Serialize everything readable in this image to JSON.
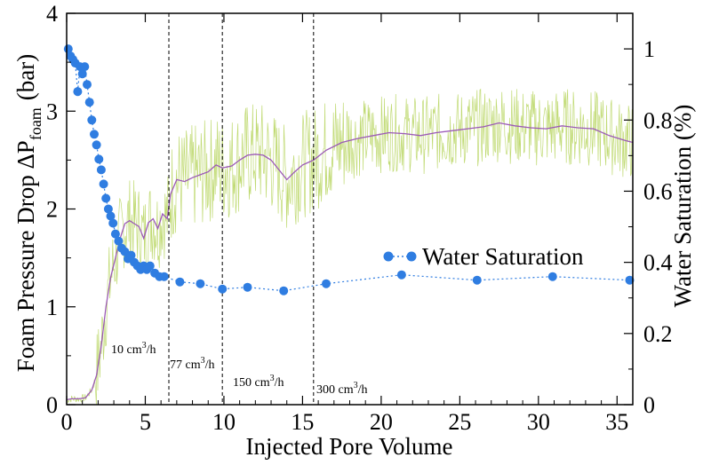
{
  "chart_data": {
    "type": "line",
    "xlabel": "Injected Pore Volume",
    "ylabel_left": "Foam Pressure Drop  ΔP",
    "ylabel_left_sub": "foam",
    "ylabel_left_unit": "(bar)",
    "ylabel_right": "Water Saturation (%)",
    "xlim": [
      0,
      36
    ],
    "ylim_left": [
      0,
      4
    ],
    "ylim_right": [
      0,
      1.1
    ],
    "xticks": [
      "0",
      "5",
      "10",
      "15",
      "20",
      "25",
      "30",
      "35"
    ],
    "yticks_left": [
      "0",
      "1",
      "2",
      "3",
      "4"
    ],
    "yticks_right": [
      "0",
      "0.2",
      "0.4",
      "0.6",
      "0.8",
      "1"
    ],
    "grid": false,
    "legend_position": "center-right",
    "flow_rate_changes": [
      {
        "x": 6.5,
        "label_base": "77 cm",
        "label_sup": "3",
        "label_tail": "/h"
      },
      {
        "x": 9.9,
        "label_base": "150 cm",
        "label_sup": "3",
        "label_tail": "/h"
      },
      {
        "x": 15.7,
        "label_base": "300 cm",
        "label_sup": "3",
        "label_tail": "/h"
      }
    ],
    "initial_rate_label": {
      "label_base": "10 cm",
      "label_sup": "3",
      "label_tail": "/h"
    },
    "series": [
      {
        "name": "Water Saturation",
        "axis": "right",
        "style": "dotted-line-with-markers",
        "color": "#2f7de1",
        "x": [
          0.1,
          0.25,
          0.4,
          0.55,
          0.7,
          0.85,
          1.0,
          1.15,
          1.3,
          1.45,
          1.6,
          1.75,
          1.9,
          2.05,
          2.2,
          2.35,
          2.5,
          2.65,
          2.8,
          2.95,
          3.1,
          3.3,
          3.5,
          3.7,
          3.9,
          4.1,
          4.3,
          4.5,
          4.7,
          4.9,
          5.1,
          5.3,
          5.6,
          5.9,
          6.2,
          7.2,
          8.5,
          9.9,
          11.5,
          13.8,
          16.5,
          21.3,
          26.1,
          30.9,
          35.8
        ],
        "values": [
          1.0,
          0.98,
          0.97,
          0.96,
          0.88,
          0.95,
          0.93,
          0.95,
          0.9,
          0.85,
          0.8,
          0.76,
          0.73,
          0.69,
          0.66,
          0.62,
          0.58,
          0.55,
          0.53,
          0.51,
          0.48,
          0.46,
          0.44,
          0.43,
          0.41,
          0.42,
          0.4,
          0.39,
          0.38,
          0.39,
          0.38,
          0.39,
          0.37,
          0.36,
          0.36,
          0.345,
          0.34,
          0.325,
          0.33,
          0.32,
          0.34,
          0.365,
          0.35,
          0.36,
          0.35
        ]
      },
      {
        "name": "",
        "axis": "left",
        "style": "smoothed-line",
        "color": "#9b59b6",
        "x": [
          0,
          0.3,
          0.8,
          1.2,
          1.6,
          1.9,
          2.2,
          2.5,
          2.8,
          3.1,
          3.4,
          3.7,
          4.0,
          4.3,
          4.6,
          4.9,
          5.2,
          5.5,
          5.8,
          6.1,
          6.4,
          6.6,
          7.0,
          7.5,
          8.0,
          8.5,
          9.0,
          9.5,
          9.9,
          10.5,
          11.0,
          11.5,
          12.0,
          12.5,
          13.0,
          13.5,
          14.0,
          14.5,
          15.0,
          15.7,
          16.5,
          17.5,
          18.5,
          19.5,
          20.5,
          21.5,
          22.5,
          23.5,
          24.5,
          25.5,
          26.5,
          27.5,
          28.5,
          29.5,
          30.5,
          31.5,
          32.5,
          33.5,
          34.5,
          35.5,
          36
        ],
        "values": [
          0.05,
          0.06,
          0.06,
          0.07,
          0.15,
          0.3,
          0.6,
          1.0,
          1.3,
          1.5,
          1.7,
          1.85,
          1.88,
          1.85,
          1.82,
          1.7,
          1.86,
          1.9,
          1.8,
          1.95,
          1.9,
          2.15,
          2.3,
          2.28,
          2.32,
          2.35,
          2.38,
          2.45,
          2.42,
          2.44,
          2.5,
          2.55,
          2.56,
          2.55,
          2.5,
          2.4,
          2.3,
          2.38,
          2.45,
          2.5,
          2.6,
          2.68,
          2.72,
          2.75,
          2.78,
          2.77,
          2.75,
          2.78,
          2.8,
          2.82,
          2.84,
          2.88,
          2.85,
          2.83,
          2.82,
          2.85,
          2.83,
          2.82,
          2.75,
          2.7,
          2.68
        ]
      },
      {
        "name": "",
        "axis": "left",
        "style": "thin-noisy-line",
        "color": "#b5d35a",
        "x_range": [
          0,
          36
        ],
        "note_trend": "raw pressure drop fluctuating around the smoothed curve, amplitude ~±0.5 bar after PV 2"
      }
    ],
    "legend": [
      {
        "label": "Water Saturation",
        "marker": "circle",
        "color": "#2f7de1"
      }
    ]
  }
}
